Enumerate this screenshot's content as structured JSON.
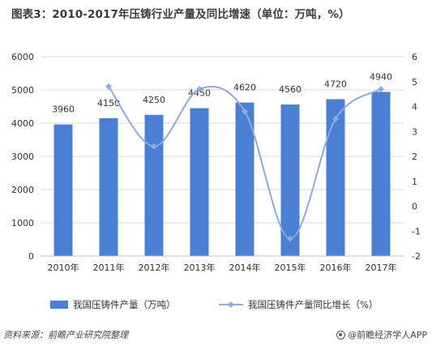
{
  "title": "图表3：2010-2017年压铸行业产量及同比增速（单位：万吨，%）",
  "source": "资料来源：前瞻产业研究院整理",
  "brand": "@前瞻经济学人APP",
  "colors": {
    "bar": "#4a7fd4",
    "line": "#8fabdb",
    "grid": "#d9d9d9"
  },
  "chart_data": {
    "type": "bar",
    "categories": [
      "2010年",
      "2011年",
      "2012年",
      "2013年",
      "2014年",
      "2015年",
      "2016年",
      "2017年"
    ],
    "series": [
      {
        "name": "我国压铸件产量（万吨）",
        "type": "bar",
        "axis": "left",
        "values": [
          3960,
          4150,
          4250,
          4450,
          4620,
          4560,
          4720,
          4940
        ]
      },
      {
        "name": "我国压铸件产量同比增长（%）",
        "type": "line",
        "axis": "right",
        "values": [
          null,
          4.8,
          2.4,
          4.7,
          3.8,
          -1.3,
          3.5,
          4.7
        ]
      }
    ],
    "data_labels": [
      "3960",
      "4150",
      "4250",
      "4450",
      "4620",
      "4560",
      "4720",
      "4940"
    ],
    "y_left": {
      "ticks": [
        "0",
        "1000",
        "2000",
        "3000",
        "4000",
        "5000",
        "6000"
      ],
      "min": 0,
      "max": 6000
    },
    "y_right": {
      "ticks": [
        "-2",
        "-1",
        "0",
        "1",
        "2",
        "3",
        "4",
        "5",
        "6"
      ],
      "min": -2,
      "max": 6
    },
    "legend_position": "bottom",
    "grid": true
  }
}
